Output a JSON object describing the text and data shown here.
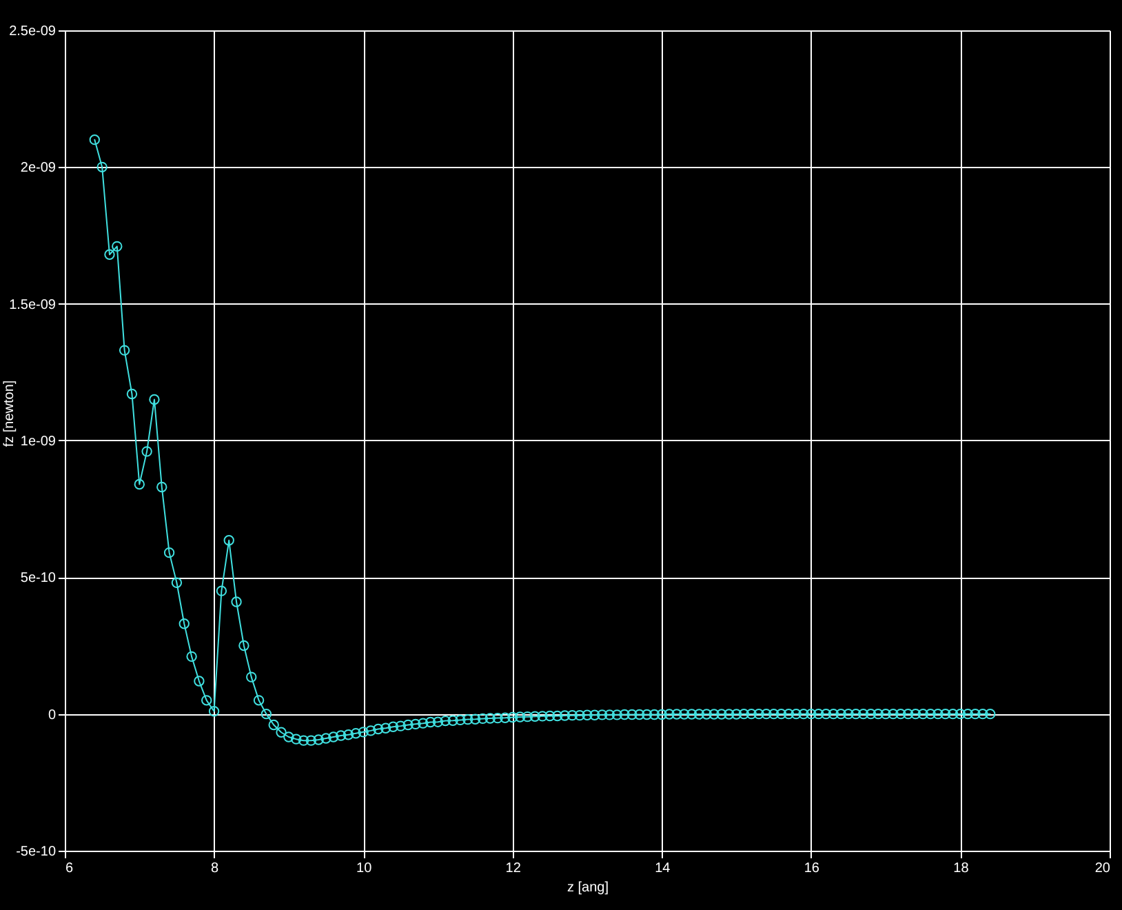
{
  "chart_data": {
    "type": "line",
    "xlabel": "z [ang]",
    "ylabel": "fz [newton]",
    "x": [
      6.4,
      6.5,
      6.6,
      6.7,
      6.8,
      6.9,
      7.0,
      7.1,
      7.2,
      7.3,
      7.4,
      7.5,
      7.6,
      7.7,
      7.8,
      7.9,
      8.0,
      8.1,
      8.2,
      8.3,
      8.4,
      8.5,
      8.6,
      8.7,
      8.8,
      8.9,
      9.0,
      9.1,
      9.2,
      9.3,
      9.4,
      9.5,
      9.6,
      9.7,
      9.8,
      9.9,
      10.0,
      10.1,
      10.2,
      10.3,
      10.4,
      10.5,
      10.6,
      10.7,
      10.8,
      10.9,
      11.0,
      11.1,
      11.2,
      11.3,
      11.4,
      11.5,
      11.6,
      11.7,
      11.8,
      11.9,
      12.0,
      12.1,
      12.2,
      12.3,
      12.4,
      12.5,
      12.6,
      12.7,
      12.8,
      12.9,
      13.0,
      13.1,
      13.2,
      13.3,
      13.4,
      13.5,
      13.6,
      13.7,
      13.8,
      13.9,
      14.0,
      14.1,
      14.2,
      14.3,
      14.4,
      14.5,
      14.6,
      14.7,
      14.8,
      14.9,
      15.0,
      15.1,
      15.2,
      15.3,
      15.4,
      15.5,
      15.6,
      15.7,
      15.8,
      15.9,
      16.0,
      16.1,
      16.2,
      16.3,
      16.4,
      16.5,
      16.6,
      16.7,
      16.8,
      16.9,
      17.0,
      17.1,
      17.2,
      17.3,
      17.4,
      17.5,
      17.6,
      17.7,
      17.8,
      17.9,
      18.0,
      18.1,
      18.2,
      18.3,
      18.4
    ],
    "series": [
      {
        "color": "#40e0e0",
        "values": [
          2.1e-09,
          2e-09,
          1.68e-09,
          1.71e-09,
          1.33e-09,
          1.17e-09,
          8.4e-10,
          9.6e-10,
          1.15e-09,
          8.3e-10,
          5.9e-10,
          4.8e-10,
          3.3e-10,
          2.1e-10,
          1.2e-10,
          5e-11,
          1e-11,
          4.5e-10,
          6.35e-10,
          4.1e-10,
          2.5e-10,
          1.35e-10,
          5e-11,
          0,
          -4e-11,
          -6.7e-11,
          -8.4e-11,
          -9.2e-11,
          -9.7e-11,
          -9.7e-11,
          -9.4e-11,
          -8.9e-11,
          -8.4e-11,
          -7.9e-11,
          -7.6e-11,
          -7.1e-11,
          -6.6e-11,
          -6.1e-11,
          -5.5e-11,
          -5.2e-11,
          -4.7e-11,
          -4.4e-11,
          -4e-11,
          -3.7e-11,
          -3.4e-11,
          -3e-11,
          -2.9e-11,
          -2.5e-11,
          -2.4e-11,
          -2.2e-11,
          -2e-11,
          -1.9e-11,
          -1.7e-11,
          -1.6e-11,
          -1.5e-11,
          -1.4e-11,
          -1.2e-11,
          -1.1e-11,
          -1e-11,
          -9e-12,
          -8e-12,
          -7e-12,
          -7e-12,
          -6e-12,
          -5e-12,
          -5e-12,
          -4e-12,
          -4e-12,
          -3e-12,
          -3e-12,
          -3e-12,
          -2e-12,
          -2e-12,
          -2e-12,
          -2e-12,
          -2e-12,
          -2e-12,
          -1e-12,
          -1e-12,
          -1e-12,
          -1e-12,
          -1e-12,
          -1e-12,
          -1e-12,
          -1e-12,
          -1e-12,
          -1e-12,
          0,
          0,
          0,
          0,
          0,
          0,
          0,
          0,
          0,
          0,
          0,
          0,
          0,
          0,
          0,
          0,
          0,
          0,
          0,
          0,
          0,
          0,
          0,
          0,
          0,
          0,
          0,
          0,
          0,
          0,
          0,
          0,
          0,
          0
        ]
      }
    ],
    "xlim": [
      6,
      20
    ],
    "xticks": [
      6,
      8,
      10,
      12,
      14,
      16,
      18,
      20
    ],
    "ylim": [
      -5e-10,
      2.5e-09
    ],
    "yticks": [
      {
        "value": -5e-10,
        "label": "-5e-10"
      },
      0,
      {
        "value": 5e-10,
        "label": "5e-10"
      },
      {
        "value": 1e-09,
        "label": "1e-09"
      },
      {
        "value": 1.5e-09,
        "label": "1.5e-09"
      },
      {
        "value": 2e-09,
        "label": "2e-09"
      },
      {
        "value": 2.5e-09,
        "label": "2.5e-09"
      }
    ],
    "grid": true,
    "marker": "circle",
    "line_style": "solid"
  }
}
